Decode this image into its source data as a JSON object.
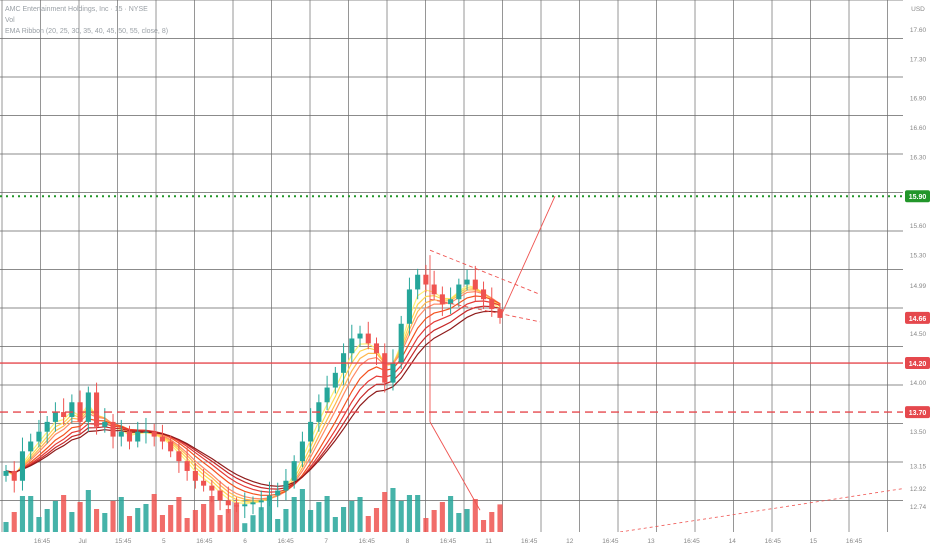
{
  "legend": {
    "title": "AMC Entertainment Holdings, Inc · 15 · NYSE",
    "volume": "Vol",
    "ribbon": "EMA Ribbon (20, 25, 30, 35, 40, 45, 50, 55, close, 8)"
  },
  "price_axis": {
    "currency": "USD",
    "ticks": [
      "17.60",
      "17.30",
      "16.90",
      "16.60",
      "16.30",
      "15.90",
      "15.60",
      "15.30",
      "14.99",
      "14.66",
      "14.50",
      "14.20",
      "14.00",
      "13.70",
      "13.50",
      "13.15",
      "12.92",
      "12.74"
    ]
  },
  "time_axis": {
    "labels": [
      "16:45",
      "Jul",
      "15:45",
      "5",
      "16:45",
      "6",
      "16:45",
      "7",
      "16:45",
      "8",
      "16:45",
      "11",
      "16:45",
      "12",
      "16:45",
      "13",
      "16:45",
      "14",
      "16:45",
      "15",
      "16:45"
    ]
  },
  "levels": [
    {
      "name": "target",
      "price": 15.9,
      "label": "15.90",
      "color": "#22962a",
      "style": "dotted"
    },
    {
      "name": "current",
      "price": 14.66,
      "label": "14.66",
      "color": "#e5484d",
      "style": "badge"
    },
    {
      "name": "resistance",
      "price": 14.2,
      "label": "14.20",
      "color": "#e5484d",
      "style": "solid"
    },
    {
      "name": "support",
      "price": 13.7,
      "label": "13.70",
      "color": "#e5484d",
      "style": "dashed"
    }
  ],
  "colors": {
    "up": "#26a69a",
    "down": "#ef5350",
    "grid": "#6f6f6f",
    "ribbon": [
      "#fff176",
      "#ffd54f",
      "#ffb74d",
      "#ff8a65",
      "#f4511e",
      "#e53935",
      "#c62828",
      "#8e1b1b"
    ]
  },
  "chart_data": {
    "type": "candlestick",
    "title": "AMC Entertainment Holdings, Inc · 15 · NYSE",
    "ylim": [
      12.6,
      17.9
    ],
    "y_scale": "log-like (price axis)",
    "grid": true,
    "indicators": [
      "Volume",
      "EMA Ribbon (20, 25, 30, 35, 40, 45, 50, 55)"
    ],
    "close_series": [
      13.1,
      13.0,
      13.3,
      13.4,
      13.5,
      13.6,
      13.7,
      13.65,
      13.8,
      13.6,
      13.9,
      13.55,
      13.6,
      13.45,
      13.5,
      13.4,
      13.5,
      13.5,
      13.45,
      13.4,
      13.3,
      13.2,
      13.1,
      13.0,
      12.95,
      12.9,
      12.8,
      12.75,
      12.74,
      12.76,
      12.78,
      12.8,
      12.85,
      12.9,
      13.0,
      13.2,
      13.4,
      13.6,
      13.8,
      13.95,
      14.1,
      14.3,
      14.45,
      14.5,
      14.4,
      14.3,
      14.0,
      14.2,
      14.6,
      14.95,
      15.1,
      15.0,
      14.9,
      14.8,
      14.85,
      15.0,
      15.05,
      14.95,
      14.85,
      14.75,
      14.66
    ],
    "annotations": [
      {
        "type": "hline",
        "value": 15.9,
        "label": "15.90"
      },
      {
        "type": "hline",
        "value": 14.2,
        "label": "14.20"
      },
      {
        "type": "hline",
        "value": 13.7,
        "label": "13.70"
      },
      {
        "type": "price_label",
        "value": 14.66,
        "label": "14.66"
      }
    ]
  }
}
